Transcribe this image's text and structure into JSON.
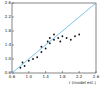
{
  "chart_data": {
    "type": "scatter",
    "x_label": "r (model est.)",
    "xlim": [
      0.6,
      2.6
    ],
    "ylim": [
      0.6,
      2.6
    ],
    "xticks": [
      0.6,
      {
        "value": 1,
        "label": "1.0"
      },
      1.4,
      1.8,
      2.2,
      2.6
    ],
    "yticks": [
      0.6,
      {
        "value": 1,
        "label": "1.0"
      },
      1.4,
      1.8,
      2.2,
      2.6
    ],
    "grid": false,
    "series": [
      {
        "type": "scatter",
        "color": "#111111",
        "marker": "circle",
        "x": [
          0.8,
          0.85,
          0.9,
          1.0,
          1.1,
          1.2,
          1.3,
          1.3,
          1.4,
          1.45,
          1.5,
          1.5,
          1.6,
          1.6,
          1.7,
          1.75,
          1.8,
          1.9,
          2.0,
          2.1,
          2.2
        ],
        "values": [
          0.75,
          0.9,
          0.8,
          0.95,
          1.0,
          1.05,
          1.2,
          1.35,
          1.3,
          1.5,
          1.45,
          1.6,
          1.55,
          1.7,
          1.6,
          1.5,
          1.65,
          1.6,
          1.55,
          1.65,
          1.7
        ]
      },
      {
        "type": "line",
        "color": "#5ab4e6",
        "line_style": "solid",
        "x": [
          0.6,
          2.6
        ],
        "values": [
          0.6,
          2.6
        ]
      }
    ]
  }
}
